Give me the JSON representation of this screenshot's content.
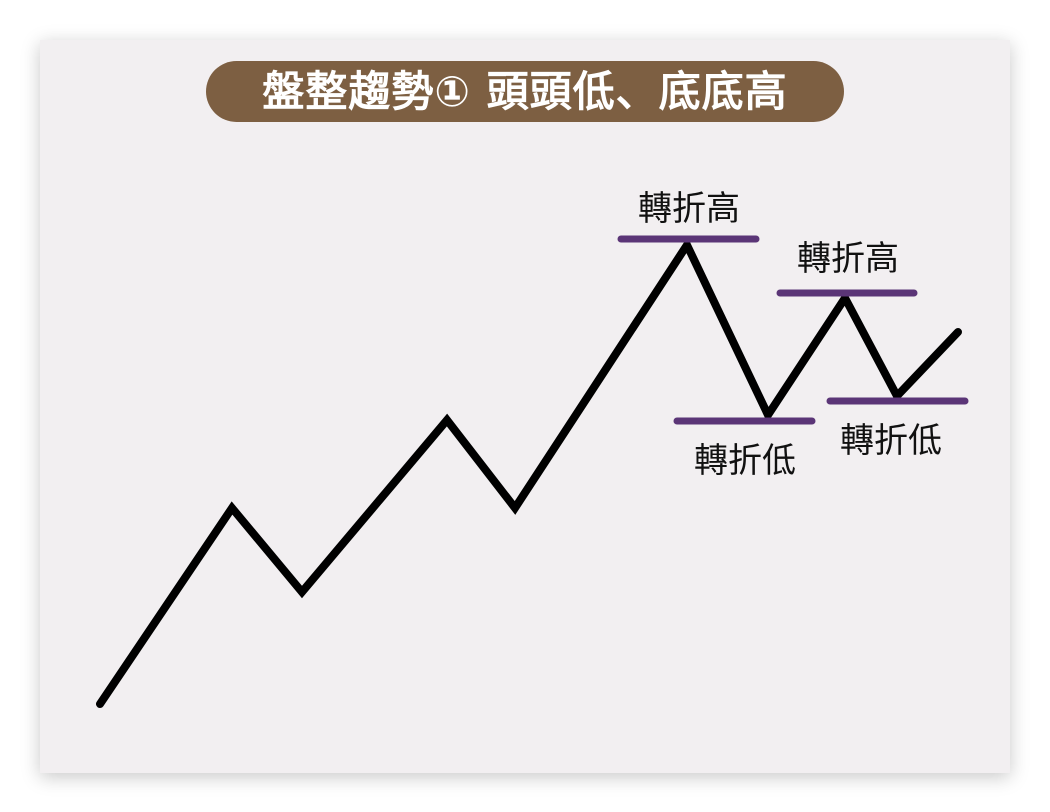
{
  "title": "盤整趨勢① 頭頭低、底底高",
  "labels": {
    "high_1": "轉折高",
    "high_2": "轉折高",
    "low_1": "轉折低",
    "low_2": "轉折低"
  },
  "colors": {
    "title_bg": "#7d5f42",
    "title_text": "#ffffff",
    "line": "#000000",
    "marker": "#5b3577",
    "card_bg": "#f2eff1"
  }
}
